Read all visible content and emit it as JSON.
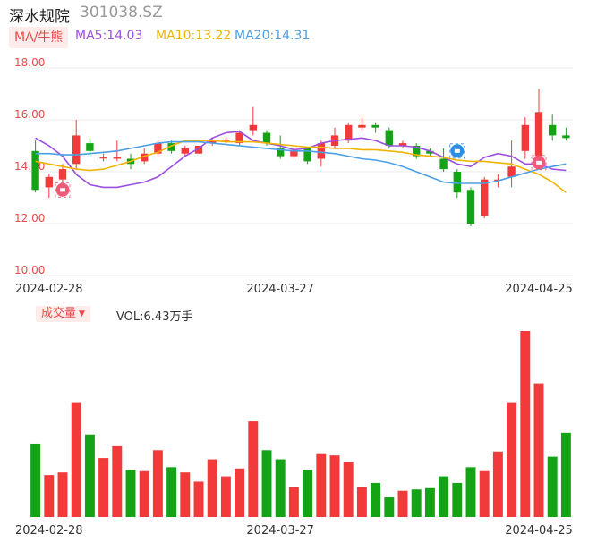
{
  "header": {
    "name": "深水规院",
    "code": "301038.SZ"
  },
  "ma": {
    "tag": "MA/牛熊",
    "items": [
      {
        "label": "MA5:14.03",
        "color": "#9b4ee0"
      },
      {
        "label": "MA10:13.22",
        "color": "#f0b400"
      },
      {
        "label": "MA20:14.31",
        "color": "#4a9fe6"
      }
    ]
  },
  "volume": {
    "tag": "成交量",
    "caret": "▼",
    "text": "VOL:6.43万手"
  },
  "colors": {
    "up": "#f23a3a",
    "down": "#14a314",
    "bull_icon": "#f05a7a",
    "bear_icon": "#2a8de8"
  },
  "chart_data": {
    "type": "candlestick",
    "y_ticks": [
      "18.00",
      "16.00",
      "14.00",
      "12.00",
      "10.00"
    ],
    "ylim": [
      10,
      18
    ],
    "x_ticks": [
      {
        "label": "2024-02-28",
        "index": 1
      },
      {
        "label": "2024-03-27",
        "index": 18
      },
      {
        "label": "2024-04-25",
        "index": 37
      }
    ],
    "candles": [
      {
        "o": 14.8,
        "c": 13.3,
        "h": 15.2,
        "l": 13.2
      },
      {
        "o": 13.4,
        "c": 13.8,
        "h": 13.9,
        "l": 13.0
      },
      {
        "o": 13.7,
        "c": 14.1,
        "h": 14.3,
        "l": 13.6
      },
      {
        "o": 14.3,
        "c": 15.4,
        "h": 16.0,
        "l": 14.1
      },
      {
        "o": 15.1,
        "c": 14.8,
        "h": 15.3,
        "l": 14.6
      },
      {
        "o": 14.55,
        "c": 14.55,
        "h": 14.7,
        "l": 14.4
      },
      {
        "o": 14.5,
        "c": 14.55,
        "h": 15.2,
        "l": 14.4
      },
      {
        "o": 14.5,
        "c": 14.3,
        "h": 14.7,
        "l": 14.1
      },
      {
        "o": 14.4,
        "c": 14.7,
        "h": 14.9,
        "l": 14.3
      },
      {
        "o": 14.7,
        "c": 15.1,
        "h": 15.2,
        "l": 14.6
      },
      {
        "o": 15.1,
        "c": 14.8,
        "h": 15.2,
        "l": 14.7
      },
      {
        "o": 14.7,
        "c": 14.9,
        "h": 15.0,
        "l": 14.6
      },
      {
        "o": 14.7,
        "c": 15.0,
        "h": 15.0,
        "l": 14.7
      },
      {
        "o": 15.1,
        "c": 15.2,
        "h": 15.3,
        "l": 15.0
      },
      {
        "o": 15.2,
        "c": 15.2,
        "h": 15.35,
        "l": 15.1
      },
      {
        "o": 15.1,
        "c": 15.5,
        "h": 15.6,
        "l": 15.0
      },
      {
        "o": 15.6,
        "c": 15.8,
        "h": 16.5,
        "l": 15.4
      },
      {
        "o": 15.5,
        "c": 15.1,
        "h": 15.6,
        "l": 15.0
      },
      {
        "o": 14.9,
        "c": 14.6,
        "h": 15.4,
        "l": 14.5
      },
      {
        "o": 14.6,
        "c": 14.8,
        "h": 14.9,
        "l": 14.5
      },
      {
        "o": 14.9,
        "c": 14.4,
        "h": 14.9,
        "l": 14.3
      },
      {
        "o": 14.5,
        "c": 15.1,
        "h": 15.2,
        "l": 14.2
      },
      {
        "o": 15.0,
        "c": 15.4,
        "h": 15.7,
        "l": 14.9
      },
      {
        "o": 15.2,
        "c": 15.8,
        "h": 15.9,
        "l": 15.1
      },
      {
        "o": 15.7,
        "c": 15.8,
        "h": 16.1,
        "l": 15.6
      },
      {
        "o": 15.8,
        "c": 15.7,
        "h": 15.9,
        "l": 15.5
      },
      {
        "o": 15.6,
        "c": 15.0,
        "h": 15.7,
        "l": 14.9
      },
      {
        "o": 15.0,
        "c": 15.1,
        "h": 15.2,
        "l": 14.9
      },
      {
        "o": 15.0,
        "c": 14.6,
        "h": 15.1,
        "l": 14.5
      },
      {
        "o": 14.8,
        "c": 14.7,
        "h": 14.9,
        "l": 14.6
      },
      {
        "o": 14.5,
        "c": 14.1,
        "h": 14.9,
        "l": 14.0
      },
      {
        "o": 14.0,
        "c": 13.2,
        "h": 14.1,
        "l": 13.0
      },
      {
        "o": 13.3,
        "c": 12.0,
        "h": 13.4,
        "l": 11.9
      },
      {
        "o": 12.3,
        "c": 13.7,
        "h": 13.8,
        "l": 12.2
      },
      {
        "o": 13.7,
        "c": 13.7,
        "h": 13.9,
        "l": 13.4
      },
      {
        "o": 13.8,
        "c": 14.2,
        "h": 15.2,
        "l": 13.4
      },
      {
        "o": 14.8,
        "c": 15.8,
        "h": 16.1,
        "l": 14.5
      },
      {
        "o": 14.6,
        "c": 16.3,
        "h": 17.2,
        "l": 14.5
      },
      {
        "o": 15.8,
        "c": 15.4,
        "h": 16.2,
        "l": 15.2
      },
      {
        "o": 15.4,
        "c": 15.3,
        "h": 15.7,
        "l": 15.2
      }
    ],
    "ma5": [
      15.3,
      15.0,
      14.6,
      13.9,
      13.5,
      13.4,
      13.4,
      13.5,
      13.6,
      13.8,
      14.2,
      14.6,
      14.9,
      15.3,
      15.5,
      15.55,
      15.2,
      15.1,
      15.0,
      14.85,
      14.9,
      15.1,
      15.2,
      15.25,
      15.3,
      15.2,
      15.0,
      15.0,
      14.95,
      14.8,
      14.55,
      14.3,
      14.2,
      14.55,
      14.7,
      14.6,
      14.3,
      14.3,
      14.1,
      14.05
    ],
    "ma10": [
      14.4,
      14.3,
      14.2,
      14.1,
      14.05,
      14.1,
      14.25,
      14.4,
      14.6,
      14.75,
      15.0,
      15.2,
      15.2,
      15.2,
      15.15,
      15.15,
      15.15,
      15.1,
      15.05,
      15.0,
      14.95,
      14.95,
      14.9,
      14.9,
      14.85,
      14.85,
      14.8,
      14.75,
      14.65,
      14.6,
      14.55,
      14.45,
      14.4,
      14.4,
      14.35,
      14.3,
      14.1,
      13.9,
      13.6,
      13.2
    ],
    "ma20": [
      14.7,
      14.7,
      14.65,
      14.65,
      14.7,
      14.75,
      14.8,
      14.9,
      15.0,
      15.1,
      15.15,
      15.15,
      15.15,
      15.1,
      15.05,
      15.0,
      14.95,
      14.9,
      14.85,
      14.8,
      14.8,
      14.75,
      14.7,
      14.6,
      14.5,
      14.45,
      14.35,
      14.2,
      14.0,
      13.8,
      13.6,
      13.55,
      13.55,
      13.55,
      13.65,
      13.8,
      13.95,
      14.1,
      14.2,
      14.3
    ],
    "volumes": [
      5.6,
      3.2,
      3.4,
      8.7,
      6.3,
      4.5,
      5.4,
      3.6,
      3.5,
      5.1,
      3.8,
      3.4,
      2.7,
      4.4,
      3.1,
      3.7,
      7.3,
      5.1,
      4.4,
      2.3,
      3.6,
      4.8,
      4.7,
      4.2,
      2.3,
      2.6,
      1.5,
      2.0,
      2.1,
      2.2,
      3.1,
      2.6,
      3.8,
      3.5,
      5.0,
      8.7,
      14.2,
      10.2,
      4.6,
      6.43
    ]
  }
}
